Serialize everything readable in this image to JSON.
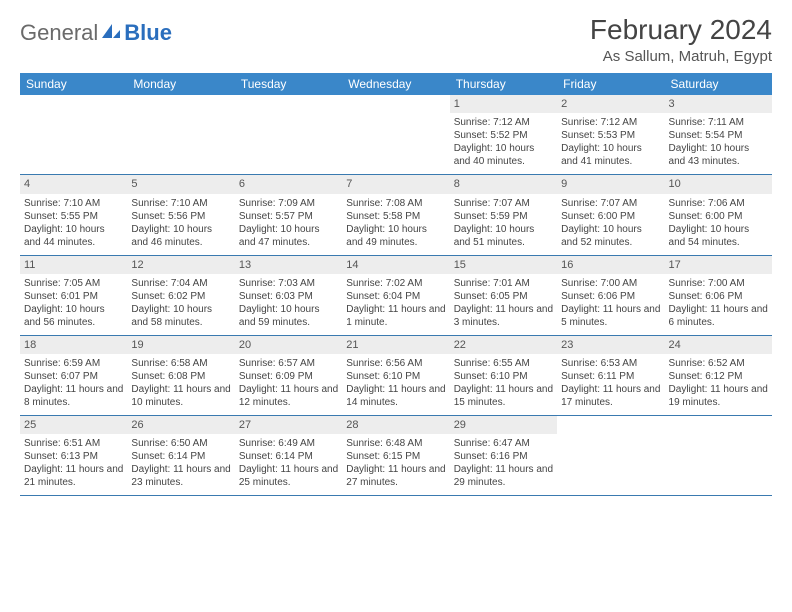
{
  "logo": {
    "text1": "General",
    "text2": "Blue"
  },
  "title": "February 2024",
  "location": "As Sallum, Matruh, Egypt",
  "colors": {
    "header_bg": "#3a87c9",
    "header_text": "#ffffff",
    "row_border": "#3a7ab0",
    "daynum_bg": "#ededed",
    "logo_blue": "#2a6ebd",
    "page_bg": "#ffffff"
  },
  "typography": {
    "title_size": 28,
    "location_size": 15,
    "header_size": 12,
    "body_size": 10
  },
  "day_headers": [
    "Sunday",
    "Monday",
    "Tuesday",
    "Wednesday",
    "Thursday",
    "Friday",
    "Saturday"
  ],
  "weeks": [
    [
      null,
      null,
      null,
      null,
      {
        "n": "1",
        "sr": "7:12 AM",
        "ss": "5:52 PM",
        "dl": "10 hours and 40 minutes."
      },
      {
        "n": "2",
        "sr": "7:12 AM",
        "ss": "5:53 PM",
        "dl": "10 hours and 41 minutes."
      },
      {
        "n": "3",
        "sr": "7:11 AM",
        "ss": "5:54 PM",
        "dl": "10 hours and 43 minutes."
      }
    ],
    [
      {
        "n": "4",
        "sr": "7:10 AM",
        "ss": "5:55 PM",
        "dl": "10 hours and 44 minutes."
      },
      {
        "n": "5",
        "sr": "7:10 AM",
        "ss": "5:56 PM",
        "dl": "10 hours and 46 minutes."
      },
      {
        "n": "6",
        "sr": "7:09 AM",
        "ss": "5:57 PM",
        "dl": "10 hours and 47 minutes."
      },
      {
        "n": "7",
        "sr": "7:08 AM",
        "ss": "5:58 PM",
        "dl": "10 hours and 49 minutes."
      },
      {
        "n": "8",
        "sr": "7:07 AM",
        "ss": "5:59 PM",
        "dl": "10 hours and 51 minutes."
      },
      {
        "n": "9",
        "sr": "7:07 AM",
        "ss": "6:00 PM",
        "dl": "10 hours and 52 minutes."
      },
      {
        "n": "10",
        "sr": "7:06 AM",
        "ss": "6:00 PM",
        "dl": "10 hours and 54 minutes."
      }
    ],
    [
      {
        "n": "11",
        "sr": "7:05 AM",
        "ss": "6:01 PM",
        "dl": "10 hours and 56 minutes."
      },
      {
        "n": "12",
        "sr": "7:04 AM",
        "ss": "6:02 PM",
        "dl": "10 hours and 58 minutes."
      },
      {
        "n": "13",
        "sr": "7:03 AM",
        "ss": "6:03 PM",
        "dl": "10 hours and 59 minutes."
      },
      {
        "n": "14",
        "sr": "7:02 AM",
        "ss": "6:04 PM",
        "dl": "11 hours and 1 minute."
      },
      {
        "n": "15",
        "sr": "7:01 AM",
        "ss": "6:05 PM",
        "dl": "11 hours and 3 minutes."
      },
      {
        "n": "16",
        "sr": "7:00 AM",
        "ss": "6:06 PM",
        "dl": "11 hours and 5 minutes."
      },
      {
        "n": "17",
        "sr": "7:00 AM",
        "ss": "6:06 PM",
        "dl": "11 hours and 6 minutes."
      }
    ],
    [
      {
        "n": "18",
        "sr": "6:59 AM",
        "ss": "6:07 PM",
        "dl": "11 hours and 8 minutes."
      },
      {
        "n": "19",
        "sr": "6:58 AM",
        "ss": "6:08 PM",
        "dl": "11 hours and 10 minutes."
      },
      {
        "n": "20",
        "sr": "6:57 AM",
        "ss": "6:09 PM",
        "dl": "11 hours and 12 minutes."
      },
      {
        "n": "21",
        "sr": "6:56 AM",
        "ss": "6:10 PM",
        "dl": "11 hours and 14 minutes."
      },
      {
        "n": "22",
        "sr": "6:55 AM",
        "ss": "6:10 PM",
        "dl": "11 hours and 15 minutes."
      },
      {
        "n": "23",
        "sr": "6:53 AM",
        "ss": "6:11 PM",
        "dl": "11 hours and 17 minutes."
      },
      {
        "n": "24",
        "sr": "6:52 AM",
        "ss": "6:12 PM",
        "dl": "11 hours and 19 minutes."
      }
    ],
    [
      {
        "n": "25",
        "sr": "6:51 AM",
        "ss": "6:13 PM",
        "dl": "11 hours and 21 minutes."
      },
      {
        "n": "26",
        "sr": "6:50 AM",
        "ss": "6:14 PM",
        "dl": "11 hours and 23 minutes."
      },
      {
        "n": "27",
        "sr": "6:49 AM",
        "ss": "6:14 PM",
        "dl": "11 hours and 25 minutes."
      },
      {
        "n": "28",
        "sr": "6:48 AM",
        "ss": "6:15 PM",
        "dl": "11 hours and 27 minutes."
      },
      {
        "n": "29",
        "sr": "6:47 AM",
        "ss": "6:16 PM",
        "dl": "11 hours and 29 minutes."
      },
      null,
      null
    ]
  ],
  "labels": {
    "sunrise": "Sunrise:",
    "sunset": "Sunset:",
    "daylight": "Daylight:"
  }
}
